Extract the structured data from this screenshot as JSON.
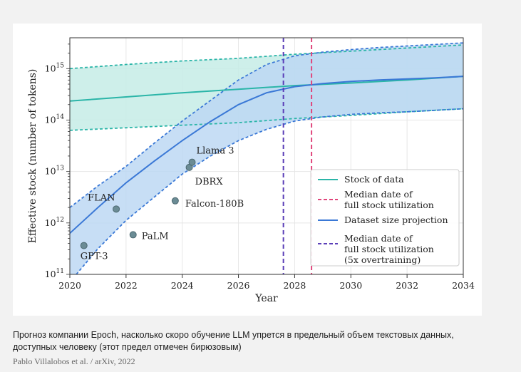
{
  "caption": "Прогноз компании Epoch, насколько скоро обучение LLM упрется в предельный объем текстовых данных, доступных человеку (этот предел отмечен бирюзовым)",
  "credit": "Pablo Villalobos et al. / arXiv, 2022",
  "chart_data": {
    "type": "line",
    "xlabel": "Year",
    "ylabel": "Effective stock (number of tokens)",
    "xlim": [
      2020,
      2034
    ],
    "ylim_log10": [
      11,
      15.6
    ],
    "yscale": "log",
    "grid": true,
    "legend_position": "lower-right",
    "x_ticks": [
      "2020",
      "2022",
      "2024",
      "2026",
      "2028",
      "2030",
      "2032",
      "2034"
    ],
    "y_tick_values": [
      11,
      12,
      13,
      14,
      15
    ],
    "colors": {
      "stock": "#2bb5a8",
      "stock_band": "#c6ece6",
      "projection": "#3a78d6",
      "projection_band": "#c9d8f7",
      "overlap_band": "#a8d6ee",
      "median_pink": "#e0457b",
      "median_purple": "#5b3fb8",
      "points": "#6b8c95"
    },
    "series": [
      {
        "name": "Stock of data",
        "x": [
          2020,
          2022,
          2024,
          2026,
          2028,
          2030,
          2032,
          2034
        ],
        "log10_y": [
          14.37,
          14.45,
          14.53,
          14.6,
          14.67,
          14.72,
          14.78,
          14.85
        ]
      },
      {
        "name": "Stock of data (lower bound)",
        "x": [
          2020,
          2022,
          2024,
          2026,
          2028,
          2030,
          2032,
          2034
        ],
        "log10_y": [
          13.8,
          13.85,
          13.9,
          13.95,
          14.03,
          14.09,
          14.16,
          14.22
        ]
      },
      {
        "name": "Stock of data (upper bound)",
        "x": [
          2020,
          2022,
          2024,
          2026,
          2028,
          2030,
          2032,
          2034
        ],
        "log10_y": [
          15.0,
          15.08,
          15.15,
          15.2,
          15.28,
          15.34,
          15.4,
          15.46
        ]
      },
      {
        "name": "Dataset size projection",
        "x": [
          2020,
          2021,
          2022,
          2023,
          2024,
          2025,
          2026,
          2027,
          2028,
          2029,
          2030,
          2031,
          2032,
          2033,
          2034
        ],
        "log10_y": [
          11.8,
          12.3,
          12.78,
          13.2,
          13.6,
          13.97,
          14.3,
          14.53,
          14.65,
          14.71,
          14.75,
          14.78,
          14.8,
          14.82,
          14.85
        ]
      },
      {
        "name": "Dataset size projection (lower bound)",
        "x": [
          2020,
          2021,
          2022,
          2023,
          2024,
          2025,
          2026,
          2027,
          2028,
          2029,
          2030,
          2031,
          2032,
          2033,
          2034
        ],
        "log10_y": [
          10.85,
          11.5,
          12.05,
          12.5,
          12.95,
          13.3,
          13.6,
          13.82,
          13.98,
          14.06,
          14.11,
          14.14,
          14.16,
          14.19,
          14.22
        ]
      },
      {
        "name": "Dataset size projection (upper bound)",
        "x": [
          2020,
          2021,
          2022,
          2023,
          2024,
          2025,
          2026,
          2027,
          2028,
          2029,
          2030,
          2031,
          2032,
          2033,
          2034
        ],
        "log10_y": [
          12.3,
          12.72,
          13.1,
          13.55,
          13.98,
          14.38,
          14.78,
          15.08,
          15.25,
          15.32,
          15.37,
          15.41,
          15.44,
          15.47,
          15.5
        ]
      }
    ],
    "vlines": [
      {
        "name": "Median date of full stock utilization",
        "x": 2028.6,
        "color_key": "median_pink"
      },
      {
        "name": "Median date of full stock utilization (5x overtraining)",
        "x": 2027.6,
        "color_key": "median_purple"
      }
    ],
    "points": [
      {
        "label": "GPT-3",
        "x": 2020.5,
        "log10_y": 11.56
      },
      {
        "label": "FLAN",
        "x": 2021.65,
        "log10_y": 12.27
      },
      {
        "label": "PaLM",
        "x": 2022.25,
        "log10_y": 11.77
      },
      {
        "label": "Falcon-180B",
        "x": 2023.75,
        "log10_y": 12.43
      },
      {
        "label": "DBRX",
        "x": 2024.25,
        "log10_y": 13.08
      },
      {
        "label": "Llama 3",
        "x": 2024.35,
        "log10_y": 13.18
      }
    ],
    "legend": [
      {
        "label": "Stock of data",
        "style": "solid",
        "color_key": "stock"
      },
      {
        "label": "Median date of full stock utilization",
        "style": "dashed",
        "color_key": "median_pink"
      },
      {
        "label": "Dataset size projection",
        "style": "solid",
        "color_key": "projection"
      },
      {
        "label": "Median date of full stock utilization (5x overtraining)",
        "style": "dashed",
        "color_key": "median_purple"
      }
    ]
  }
}
